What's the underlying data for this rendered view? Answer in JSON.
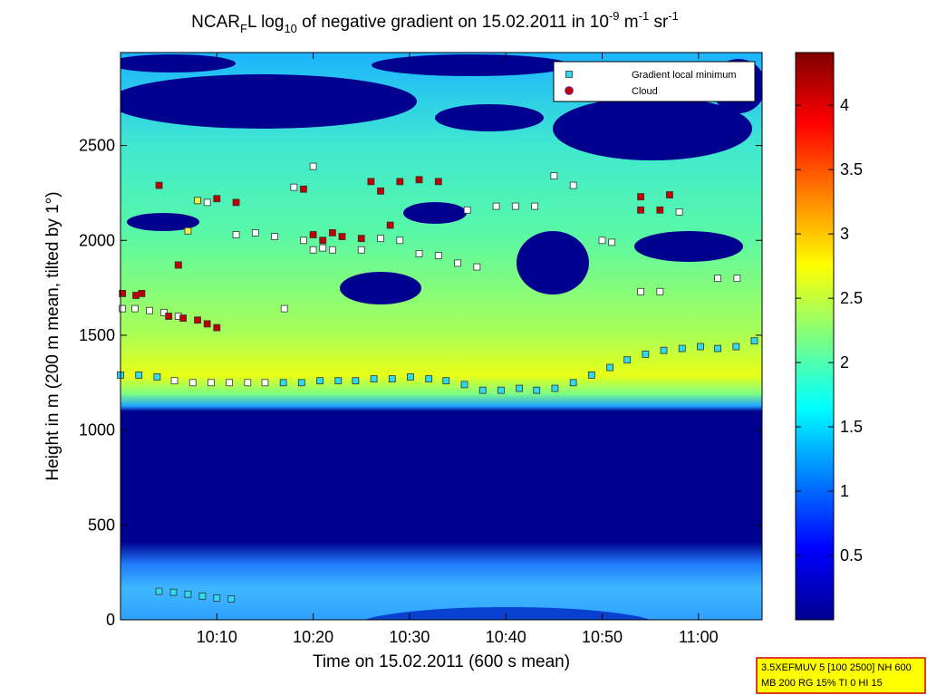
{
  "chart_data": {
    "type": "scatter",
    "title_parts": [
      "NCAR",
      "F",
      "L log",
      "10",
      " of negative gradient on 15.02.2011 in 10",
      "-9",
      " m",
      "-1",
      " sr",
      "-1"
    ],
    "x_label": "Time on 15.02.2011 (600 s mean)",
    "y_label": "Height in m (200 m mean, tilted by 1°)",
    "xlim": [
      600,
      666.6
    ],
    "ylim": [
      0,
      2990
    ],
    "xticks": [
      {
        "value": 610,
        "label": "10:10"
      },
      {
        "value": 620,
        "label": "10:20"
      },
      {
        "value": 630,
        "label": "10:30"
      },
      {
        "value": 640,
        "label": "10:40"
      },
      {
        "value": 650,
        "label": "10:50"
      },
      {
        "value": 660,
        "label": "11:00"
      }
    ],
    "yticks": [
      0,
      500,
      1000,
      1500,
      2000,
      2500
    ],
    "legend": "upper right",
    "series": [
      {
        "name": "Gradient local minimum",
        "color": "#30d8f0",
        "marker": "square",
        "x": [
          600.0,
          601.9,
          603.8,
          605.6,
          607.5,
          609.4,
          611.3,
          613.2,
          615.0,
          616.9,
          618.8,
          620.7,
          622.6,
          624.4,
          626.3,
          628.2,
          630.1,
          632.0,
          633.8,
          635.7,
          637.6,
          639.5,
          641.4,
          643.2,
          645.1,
          647.0,
          648.9,
          650.8,
          652.6,
          654.5,
          656.4,
          658.3,
          660.2,
          662.0,
          663.9,
          665.8,
          604,
          605.5,
          607,
          608.5,
          610,
          611.5,
          600.2,
          601.5,
          603,
          604.5,
          606,
          612,
          614,
          616,
          617,
          619,
          620,
          621,
          622,
          625,
          627,
          629,
          631,
          633,
          635,
          636,
          637,
          639,
          641,
          643,
          645,
          647,
          650,
          651,
          654,
          656,
          658,
          662,
          664,
          620,
          618,
          608,
          609,
          606,
          607
        ],
        "values": [
          1290,
          1290,
          1280,
          1260,
          1250,
          1250,
          1250,
          1250,
          1250,
          1250,
          1250,
          1260,
          1260,
          1260,
          1270,
          1270,
          1280,
          1270,
          1260,
          1240,
          1210,
          1210,
          1220,
          1210,
          1220,
          1250,
          1290,
          1330,
          1370,
          1400,
          1420,
          1430,
          1440,
          1430,
          1440,
          1470,
          150,
          145,
          135,
          125,
          115,
          110,
          1640,
          1640,
          1630,
          1620,
          1600,
          2030,
          2040,
          2020,
          1640,
          2000,
          1950,
          1960,
          1950,
          1950,
          2010,
          2000,
          1930,
          1920,
          1880,
          2160,
          1860,
          2180,
          2180,
          2180,
          2340,
          2290,
          2000,
          1990,
          1730,
          1730,
          2150,
          1800,
          1800,
          2390,
          2280,
          2210,
          2200,
          1870,
          2050
        ],
        "colors": [
          "#30d8f0",
          "#30d8f0",
          "#30d8f0",
          "#ffffff",
          "#ffffff",
          "#ffffff",
          "#ffffff",
          "#ffffff",
          "#ffffff",
          "#30d8f0",
          "#30d8f0",
          "#30d8f0",
          "#30d8f0",
          "#30d8f0",
          "#30d8f0",
          "#30d8f0",
          "#30d8f0",
          "#30d8f0",
          "#30d8f0",
          "#30d8f0",
          "#30d8f0",
          "#30d8f0",
          "#30d8f0",
          "#30d8f0",
          "#30d8f0",
          "#30d8f0",
          "#30d8f0",
          "#30d8f0",
          "#30d8f0",
          "#30d8f0",
          "#30d8f0",
          "#30d8f0",
          "#30d8f0",
          "#30d8f0",
          "#30d8f0",
          "#30d8f0",
          "#30d8f0",
          "#30d8f0",
          "#30d8f0",
          "#30d8f0",
          "#30d8f0",
          "#30d8f0",
          "#ffffff",
          "#ffffff",
          "#ffffff",
          "#ffffff",
          "#ffffff",
          "#ffffff",
          "#ffffff",
          "#ffffff",
          "#ffffff",
          "#ffffff",
          "#ffffff",
          "#ffffff",
          "#ffffff",
          "#ffffff",
          "#ffffff",
          "#ffffff",
          "#ffffff",
          "#ffffff",
          "#ffffff",
          "#ffffff",
          "#ffffff",
          "#ffffff",
          "#ffffff",
          "#ffffff",
          "#ffffff",
          "#ffffff",
          "#ffffff",
          "#ffffff",
          "#ffffff",
          "#ffffff",
          "#ffffff",
          "#ffffff",
          "#ffffff",
          "#ffffff",
          "#ffffff",
          "#f0f040",
          "#ffffff",
          "#ffffff",
          "#f0f040"
        ]
      },
      {
        "name": "Cloud",
        "color": "#c00000",
        "edge": "#3040ff",
        "marker": "square",
        "legend_marker": "circle",
        "x": [
          600.2,
          601.6,
          602.2,
          605,
          606.5,
          608,
          609,
          610,
          604,
          606,
          610,
          612,
          619,
          620,
          621,
          623,
          625,
          626,
          627,
          629,
          631,
          633,
          628,
          654,
          656,
          654,
          657,
          622
        ],
        "values": [
          1720,
          1710,
          1720,
          1600,
          1590,
          1580,
          1560,
          1540,
          2290,
          1870,
          2220,
          2200,
          2270,
          2030,
          2000,
          2020,
          2010,
          2310,
          2260,
          2310,
          2320,
          2310,
          2080,
          2160,
          2160,
          2230,
          2240,
          2040
        ]
      }
    ],
    "colorbar": {
      "lim": [
        0,
        4.41
      ],
      "ticks": [
        0.5,
        1,
        1.5,
        2,
        2.5,
        3,
        3.5,
        4
      ]
    },
    "info_box": [
      "3.5XEFMUV 5 [100 2500] NH 600",
      "MB 200 RG 15% TI 0 HI 15"
    ]
  }
}
